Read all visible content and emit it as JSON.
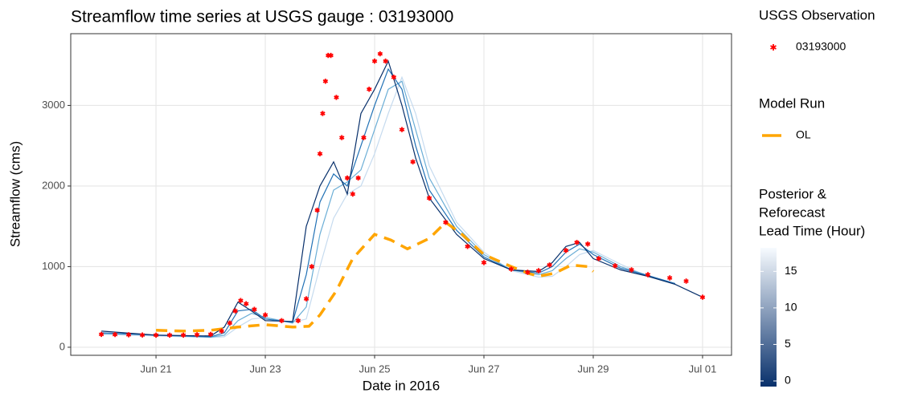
{
  "chart_data": {
    "type": "line",
    "title": "Streamflow time series at USGS gauge : 03193000",
    "x_label": "Date in 2016",
    "y_label": "Streamflow (cms)",
    "xlim": [
      19.44,
      31.53
    ],
    "xticks": [
      {
        "value": 21,
        "label": "Jun 21"
      },
      {
        "value": 23,
        "label": "Jun 23"
      },
      {
        "value": 25,
        "label": "Jun 25"
      },
      {
        "value": 27,
        "label": "Jun 27"
      },
      {
        "value": 29,
        "label": "Jun 29"
      },
      {
        "value": 31,
        "label": "Jul 01"
      }
    ],
    "ylim": [
      -100,
      3890
    ],
    "yticks": [
      0,
      1000,
      2000,
      3000
    ],
    "grid": true,
    "observations": {
      "legend_title": "USGS Observation",
      "name": "03193000",
      "color": "#ff0000",
      "x": [
        20.0,
        20.25,
        20.5,
        20.75,
        21.0,
        21.25,
        21.5,
        21.75,
        22.0,
        22.2,
        22.35,
        22.45,
        22.55,
        22.65,
        22.8,
        23.0,
        23.3,
        23.6,
        23.75,
        23.85,
        23.95,
        24.0,
        24.05,
        24.1,
        24.15,
        24.2,
        24.3,
        24.4,
        24.5,
        24.6,
        24.7,
        24.8,
        24.9,
        25.0,
        25.1,
        25.2,
        25.35,
        25.5,
        25.7,
        26.0,
        26.3,
        26.7,
        27.0,
        27.5,
        27.8,
        28.0,
        28.2,
        28.5,
        28.7,
        28.9,
        29.1,
        29.4,
        29.7,
        30.0,
        30.4,
        30.7,
        31.0
      ],
      "values": [
        160,
        158,
        155,
        152,
        150,
        150,
        150,
        155,
        160,
        200,
        300,
        450,
        580,
        540,
        470,
        400,
        330,
        330,
        600,
        1000,
        1700,
        2400,
        2900,
        3300,
        3620,
        3620,
        3100,
        2600,
        2100,
        1900,
        2100,
        2600,
        3200,
        3550,
        3640,
        3550,
        3350,
        2700,
        2300,
        1850,
        1550,
        1250,
        1050,
        970,
        930,
        950,
        1020,
        1200,
        1300,
        1280,
        1100,
        1010,
        960,
        900,
        860,
        820,
        620
      ]
    },
    "open_loop": {
      "legend_title": "Model Run",
      "name": "OL",
      "color": "#ffa500",
      "x": [
        21.0,
        21.5,
        22.0,
        22.5,
        23.0,
        23.5,
        23.8,
        24.0,
        24.3,
        24.6,
        25.0,
        25.3,
        25.6,
        26.0,
        26.3,
        26.6,
        27.0,
        27.5,
        27.8,
        28.0,
        28.3,
        28.6,
        28.9,
        29.0
      ],
      "values": [
        210,
        200,
        210,
        250,
        280,
        250,
        260,
        400,
        700,
        1100,
        1400,
        1330,
        1220,
        1350,
        1550,
        1400,
        1150,
        1000,
        920,
        880,
        920,
        1020,
        1000,
        940
      ]
    },
    "model_x": [
      20,
      21,
      22,
      22.25,
      22.5,
      22.75,
      23,
      23.5,
      23.75,
      24,
      24.25,
      24.5,
      24.75,
      25,
      25.25,
      25.5,
      25.75,
      26,
      26.5,
      27,
      27.5,
      28,
      28.25,
      28.5,
      28.75,
      29,
      29.5,
      30,
      30.5,
      31
    ],
    "runs": [
      {
        "color": "#c6dbef",
        "values": [
          160,
          140,
          120,
          130,
          250,
          350,
          370,
          310,
          350,
          1000,
          1600,
          1900,
          2000,
          2400,
          2900,
          3350,
          2900,
          2250,
          1550,
          1180,
          950,
          870,
          880,
          1000,
          1150,
          1200,
          1030,
          880,
          null,
          null
        ]
      },
      {
        "color": "#6baed6",
        "values": [
          170,
          150,
          125,
          150,
          330,
          420,
          370,
          300,
          500,
          1400,
          1950,
          2050,
          2200,
          2700,
          3200,
          3300,
          2700,
          2100,
          1500,
          1150,
          960,
          900,
          950,
          1100,
          1220,
          1180,
          1000,
          890,
          null,
          null
        ]
      },
      {
        "color": "#2171b5",
        "values": [
          180,
          150,
          130,
          180,
          450,
          470,
          350,
          310,
          900,
          1800,
          2150,
          2000,
          2500,
          3000,
          3450,
          3200,
          2500,
          1950,
          1450,
          1120,
          960,
          920,
          1000,
          1180,
          1280,
          1150,
          980,
          890,
          790,
          null
        ]
      },
      {
        "color": "#08306b",
        "values": [
          200,
          150,
          140,
          250,
          560,
          450,
          330,
          320,
          1500,
          2000,
          2300,
          1900,
          2900,
          3200,
          3550,
          3000,
          2350,
          1850,
          1400,
          1100,
          960,
          940,
          1050,
          1250,
          1300,
          1100,
          960,
          880,
          780,
          620
        ]
      }
    ],
    "colorbar": {
      "title": [
        "Posterior &",
        "Reforecast",
        "Lead Time (Hour)"
      ],
      "lim": [
        0,
        18
      ],
      "ticks": [
        0,
        5,
        10,
        15
      ],
      "colors": [
        "#08306b",
        "#f7fbff"
      ]
    }
  }
}
